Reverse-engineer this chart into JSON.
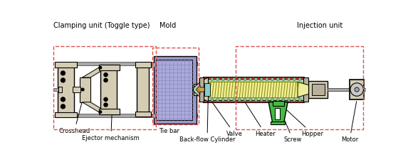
{
  "background_color": "#ffffff",
  "fig_width": 5.73,
  "fig_height": 2.35,
  "dpi": 100,
  "colors": {
    "beige": "#d4cdb4",
    "beige_dark": "#b8b09a",
    "gray": "#a8a8a8",
    "gray_light": "#c8c8c8",
    "red_dash": "#e05050",
    "red_heater": "#cc3333",
    "red_pink": "#e88888",
    "blue_mold": "#9999cc",
    "blue_light": "#aaaadd",
    "green_hopper": "#44bb44",
    "green_barrel": "#aaccaa",
    "yellow_screw": "#eeee99",
    "cyan_valve": "#88cccc",
    "black": "#000000",
    "white": "#ffffff",
    "orange_arrow": "#ccaa44",
    "dot_green": "#88cc88"
  },
  "labels": {
    "clamping_unit": "Clamping unit (Toggle type)",
    "mold": "Mold",
    "injection_unit": "Injection unit",
    "crosshead": "Crosshead",
    "ejector": "Ejector mechanism",
    "tie_bar": "Tie bar",
    "backflow": "Back-flow Cylinder",
    "valve": "Valve",
    "heater": "Heater",
    "screw": "Screw",
    "hopper": "Hopper",
    "motor": "Motor"
  },
  "font_size_title": 7.0,
  "font_size_label": 6.0
}
